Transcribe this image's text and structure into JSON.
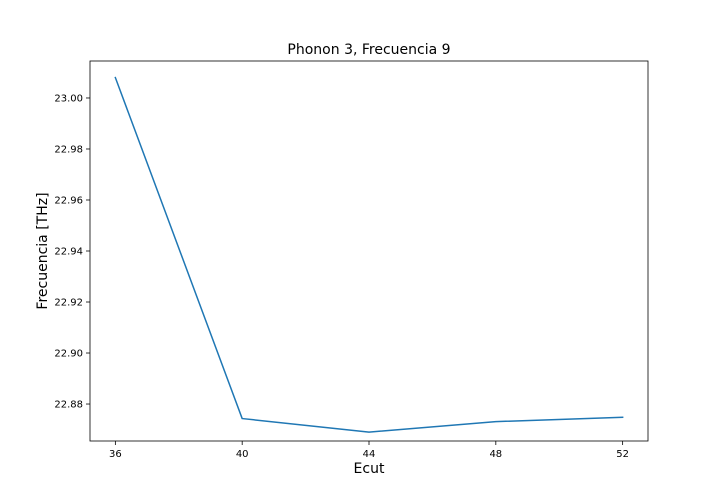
{
  "chart_data": {
    "type": "line",
    "title": "Phonon 3, Frecuencia 9",
    "xlabel": "Ecut",
    "ylabel": "Frecuencia [THz]",
    "x": [
      36,
      40,
      44,
      48,
      52
    ],
    "series": [
      {
        "values": [
          23.008,
          22.8743,
          22.869,
          22.8731,
          22.8748
        ],
        "color": "#1f77b4"
      }
    ],
    "xlim": [
      35.2,
      52.8
    ],
    "ylim": [
      22.8655,
      23.0145
    ],
    "xticks": [
      36,
      40,
      44,
      48,
      52
    ],
    "xtick_labels": [
      "36",
      "40",
      "44",
      "48",
      "52"
    ],
    "yticks": [
      22.88,
      22.9,
      22.92,
      22.94,
      22.96,
      22.98,
      23.0
    ],
    "ytick_labels": [
      "22.88",
      "22.90",
      "22.92",
      "22.94",
      "22.96",
      "22.98",
      "23.00"
    ],
    "grid": false,
    "legend": false
  }
}
